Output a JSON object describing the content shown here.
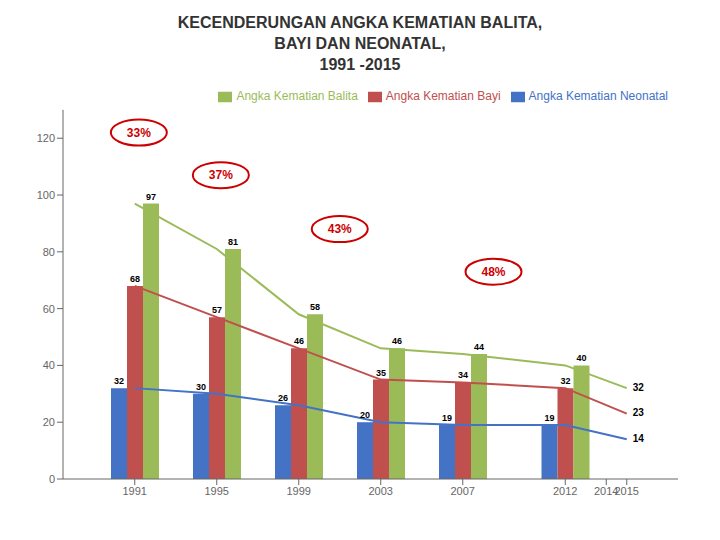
{
  "chart_data": {
    "type": "bar",
    "title": "KECENDERUNGAN ANGKA KEMATIAN BALITA,\nBAYI DAN NEONATAL,\n1991 -2015",
    "x": [
      1991,
      1995,
      1999,
      2003,
      2007,
      2012,
      2015
    ],
    "xlim": [
      1987.5,
      2017.5
    ],
    "xticks": [
      1991,
      1995,
      1999,
      2003,
      2007,
      2012,
      2014,
      2015
    ],
    "ylim": [
      0,
      130
    ],
    "yticks": [
      0,
      20,
      40,
      60,
      80,
      100,
      120
    ],
    "grid": false,
    "legend": "upper right",
    "series": [
      {
        "name": "Angka Kematian Neonatal",
        "type": "bar",
        "color": "#4472C4",
        "data_labels": true,
        "values": [
          32,
          30,
          26,
          20,
          19,
          19,
          null
        ]
      },
      {
        "name": "Angka Kematian Bayi",
        "type": "bar",
        "color": "#C0504D",
        "data_labels": true,
        "values": [
          68,
          57,
          46,
          35,
          34,
          32,
          null
        ]
      },
      {
        "name": "Angka Kematian Balita",
        "type": "bar",
        "color": "#9BBB59",
        "data_labels": true,
        "values": [
          97,
          81,
          58,
          46,
          44,
          40,
          null
        ]
      },
      {
        "type": "line",
        "color": "#4472C4",
        "values": [
          32,
          30,
          26,
          20,
          19,
          19,
          14
        ],
        "value_labels": [
          null,
          null,
          null,
          null,
          null,
          null,
          "14"
        ]
      },
      {
        "type": "line",
        "color": "#C0504D",
        "values": [
          68,
          57,
          46,
          35,
          34,
          32,
          23
        ],
        "value_labels": [
          null,
          null,
          null,
          null,
          null,
          null,
          "23"
        ]
      },
      {
        "type": "line",
        "color": "#9BBB59",
        "values": [
          97,
          81,
          58,
          46,
          44,
          40,
          32
        ],
        "value_labels": [
          null,
          null,
          null,
          null,
          null,
          null,
          "32"
        ]
      }
    ],
    "annotations": [
      {
        "x": 1991.2,
        "y": 122,
        "text": "33%"
      },
      {
        "x": 1995.2,
        "y": 107,
        "text": "37%"
      },
      {
        "x": 2001.0,
        "y": 88,
        "text": "43%"
      },
      {
        "x": 2008.5,
        "y": 73,
        "text": "48%"
      }
    ]
  }
}
